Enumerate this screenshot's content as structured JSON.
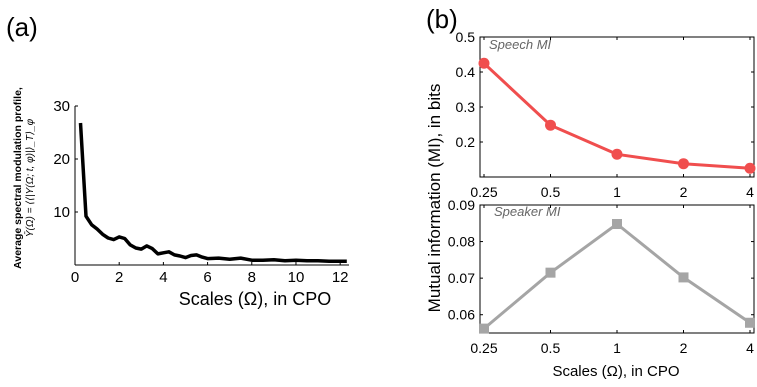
{
  "panel_labels": {
    "a": "(a)",
    "b": "(b)"
  },
  "chart_data": [
    {
      "id": "a",
      "type": "line",
      "xlabel": "Scales (Ω), in CPO",
      "ylabel_line1": "Average spectral modulation profile,",
      "ylabel_line2": "Ῡ(Ω) = ⟨⟨|Y(Ω; t, φ)|⟩_T⟩_φ",
      "xlim": [
        0,
        12.4
      ],
      "ylim": [
        0,
        30
      ],
      "xticks": [
        0,
        2,
        4,
        6,
        8,
        10,
        12
      ],
      "yticks": [
        10,
        20,
        30
      ],
      "color": "#000000",
      "x": [
        0.25,
        0.5,
        0.75,
        1.0,
        1.25,
        1.5,
        1.75,
        2.0,
        2.25,
        2.5,
        2.75,
        3.0,
        3.25,
        3.5,
        3.75,
        4.0,
        4.25,
        4.5,
        4.75,
        5.0,
        5.25,
        5.5,
        5.75,
        6.0,
        6.5,
        7.0,
        7.5,
        8.0,
        8.5,
        9.0,
        9.5,
        10.0,
        10.5,
        11.0,
        11.5,
        12.0,
        12.3
      ],
      "y": [
        26.8,
        9.2,
        7.6,
        6.8,
        5.8,
        5.1,
        4.8,
        5.3,
        5.0,
        3.8,
        3.2,
        3.0,
        3.6,
        3.1,
        2.1,
        2.3,
        2.5,
        1.9,
        1.7,
        1.4,
        1.8,
        1.9,
        1.5,
        1.2,
        1.3,
        1.1,
        1.3,
        0.9,
        0.9,
        1.0,
        0.8,
        0.9,
        0.8,
        0.8,
        0.7,
        0.7,
        0.7
      ]
    },
    {
      "id": "b-top",
      "type": "line",
      "title": "Speech MI",
      "categories": [
        "0.25",
        "0.5",
        "1",
        "2",
        "4"
      ],
      "values": [
        0.425,
        0.248,
        0.165,
        0.138,
        0.125
      ],
      "ylim": [
        0.1,
        0.5
      ],
      "yticks": [
        "0.2",
        "0.3",
        "0.4",
        "0.5"
      ],
      "color": "#f04e4e",
      "marker": "circle"
    },
    {
      "id": "b-bottom",
      "type": "line",
      "title": "Speaker MI",
      "categories": [
        "0.25",
        "0.5",
        "1",
        "2",
        "4"
      ],
      "values": [
        0.0562,
        0.0715,
        0.0848,
        0.0702,
        0.0578
      ],
      "ylim": [
        0.055,
        0.09
      ],
      "yticks": [
        "0.06",
        "0.07",
        "0.08",
        "0.09"
      ],
      "color": "#a5a5a5",
      "marker": "square",
      "xlabel": "Scales (Ω), in CPO"
    }
  ],
  "shared_ylabel_b": "Mutual information (MI), in bits"
}
